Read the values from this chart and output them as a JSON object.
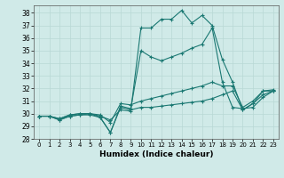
{
  "title": "",
  "xlabel": "Humidex (Indice chaleur)",
  "ylabel": "",
  "background_color": "#d0eae8",
  "grid_color": "#b8d8d5",
  "line_color": "#1a7872",
  "xlim": [
    -0.5,
    23.5
  ],
  "ylim": [
    28,
    38.6
  ],
  "yticks": [
    28,
    29,
    30,
    31,
    32,
    33,
    34,
    35,
    36,
    37,
    38
  ],
  "xticks": [
    0,
    1,
    2,
    3,
    4,
    5,
    6,
    7,
    8,
    9,
    10,
    11,
    12,
    13,
    14,
    15,
    16,
    17,
    18,
    19,
    20,
    21,
    22,
    23
  ],
  "series": [
    [
      29.8,
      29.8,
      29.5,
      29.8,
      29.9,
      30.0,
      29.7,
      28.5,
      30.5,
      30.3,
      30.5,
      30.5,
      30.6,
      30.7,
      30.8,
      30.9,
      31.0,
      31.2,
      31.5,
      31.8,
      30.3,
      30.8,
      31.5,
      31.8
    ],
    [
      29.8,
      29.8,
      29.6,
      29.9,
      30.0,
      30.0,
      29.9,
      29.3,
      30.8,
      30.7,
      31.0,
      31.2,
      31.4,
      31.6,
      31.8,
      32.0,
      32.2,
      32.5,
      32.2,
      32.2,
      30.5,
      31.0,
      31.8,
      31.9
    ],
    [
      29.8,
      29.8,
      29.6,
      29.9,
      30.0,
      30.0,
      29.8,
      29.5,
      30.3,
      30.2,
      36.8,
      36.8,
      37.5,
      37.5,
      38.2,
      37.2,
      37.8,
      37.0,
      34.3,
      32.5,
      30.3,
      30.8,
      31.8,
      31.8
    ],
    [
      29.8,
      29.8,
      29.5,
      29.8,
      29.9,
      29.9,
      29.7,
      28.5,
      30.6,
      30.4,
      35.0,
      34.5,
      34.2,
      34.5,
      34.8,
      35.2,
      35.5,
      36.8,
      32.5,
      30.5,
      30.4,
      30.5,
      31.3,
      31.8
    ]
  ]
}
